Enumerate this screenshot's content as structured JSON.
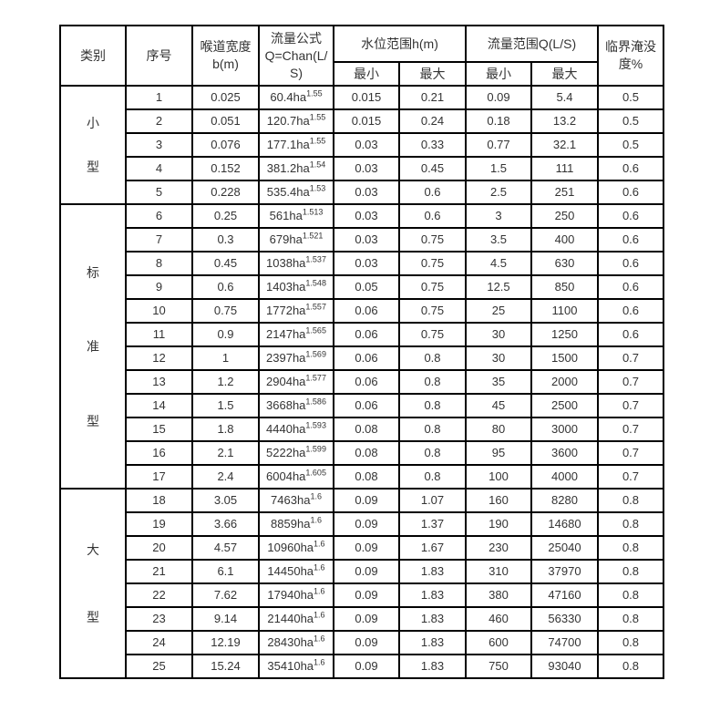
{
  "colors": {
    "background": "#ffffff",
    "border": "#000000",
    "text": "#333333"
  },
  "table": {
    "header": {
      "category": "类别",
      "seq": "序号",
      "throat_width": "喉道宽度\nb(m)",
      "formula": "流量公式\nQ=Chan(L/\nS)",
      "water_level_range": "水位范围h(m)",
      "flow_range": "流量范围Q(L/S)",
      "critical_submergence": "临界淹没\n度%",
      "sub": [
        "最小",
        "最大",
        "最小",
        "最大"
      ]
    },
    "categories": [
      {
        "label": "小型",
        "chars": [
          "小",
          "型"
        ],
        "rows": [
          {
            "seq": "1",
            "b": "0.025",
            "formula_base": "60.4ha",
            "formula_exp": "1.55",
            "h_min": "0.015",
            "h_max": "0.21",
            "q_min": "0.09",
            "q_max": "5.4",
            "submergence": "0.5"
          },
          {
            "seq": "2",
            "b": "0.051",
            "formula_base": "120.7ha",
            "formula_exp": "1.55",
            "h_min": "0.015",
            "h_max": "0.24",
            "q_min": "0.18",
            "q_max": "13.2",
            "submergence": "0.5"
          },
          {
            "seq": "3",
            "b": "0.076",
            "formula_base": "177.1ha",
            "formula_exp": "1.55",
            "h_min": "0.03",
            "h_max": "0.33",
            "q_min": "0.77",
            "q_max": "32.1",
            "submergence": "0.5"
          },
          {
            "seq": "4",
            "b": "0.152",
            "formula_base": "381.2ha",
            "formula_exp": "1.54",
            "h_min": "0.03",
            "h_max": "0.45",
            "q_min": "1.5",
            "q_max": "111",
            "submergence": "0.6"
          },
          {
            "seq": "5",
            "b": "0.228",
            "formula_base": "535.4ha",
            "formula_exp": "1.53",
            "h_min": "0.03",
            "h_max": "0.6",
            "q_min": "2.5",
            "q_max": "251",
            "submergence": "0.6"
          }
        ]
      },
      {
        "label": "标准型",
        "chars": [
          "标",
          "准",
          "型"
        ],
        "rows": [
          {
            "seq": "6",
            "b": "0.25",
            "formula_base": "561ha",
            "formula_exp": "1.513",
            "h_min": "0.03",
            "h_max": "0.6",
            "q_min": "3",
            "q_max": "250",
            "submergence": "0.6"
          },
          {
            "seq": "7",
            "b": "0.3",
            "formula_base": "679ha",
            "formula_exp": "1.521",
            "h_min": "0.03",
            "h_max": "0.75",
            "q_min": "3.5",
            "q_max": "400",
            "submergence": "0.6"
          },
          {
            "seq": "8",
            "b": "0.45",
            "formula_base": "1038ha",
            "formula_exp": "1.537",
            "h_min": "0.03",
            "h_max": "0.75",
            "q_min": "4.5",
            "q_max": "630",
            "submergence": "0.6"
          },
          {
            "seq": "9",
            "b": "0.6",
            "formula_base": "1403ha",
            "formula_exp": "1.548",
            "h_min": "0.05",
            "h_max": "0.75",
            "q_min": "12.5",
            "q_max": "850",
            "submergence": "0.6"
          },
          {
            "seq": "10",
            "b": "0.75",
            "formula_base": "1772ha",
            "formula_exp": "1.557",
            "h_min": "0.06",
            "h_max": "0.75",
            "q_min": "25",
            "q_max": "1100",
            "submergence": "0.6"
          },
          {
            "seq": "11",
            "b": "0.9",
            "formula_base": "2147ha",
            "formula_exp": "1.565",
            "h_min": "0.06",
            "h_max": "0.75",
            "q_min": "30",
            "q_max": "1250",
            "submergence": "0.6"
          },
          {
            "seq": "12",
            "b": "1",
            "formula_base": "2397ha",
            "formula_exp": "1.569",
            "h_min": "0.06",
            "h_max": "0.8",
            "q_min": "30",
            "q_max": "1500",
            "submergence": "0.7"
          },
          {
            "seq": "13",
            "b": "1.2",
            "formula_base": "2904ha",
            "formula_exp": "1.577",
            "h_min": "0.06",
            "h_max": "0.8",
            "q_min": "35",
            "q_max": "2000",
            "submergence": "0.7"
          },
          {
            "seq": "14",
            "b": "1.5",
            "formula_base": "3668ha",
            "formula_exp": "1.586",
            "h_min": "0.06",
            "h_max": "0.8",
            "q_min": "45",
            "q_max": "2500",
            "submergence": "0.7"
          },
          {
            "seq": "15",
            "b": "1.8",
            "formula_base": "4440ha",
            "formula_exp": "1.593",
            "h_min": "0.08",
            "h_max": "0.8",
            "q_min": "80",
            "q_max": "3000",
            "submergence": "0.7"
          },
          {
            "seq": "16",
            "b": "2.1",
            "formula_base": "5222ha",
            "formula_exp": "1.599",
            "h_min": "0.08",
            "h_max": "0.8",
            "q_min": "95",
            "q_max": "3600",
            "submergence": "0.7"
          },
          {
            "seq": "17",
            "b": "2.4",
            "formula_base": "6004ha",
            "formula_exp": "1.605",
            "h_min": "0.08",
            "h_max": "0.8",
            "q_min": "100",
            "q_max": "4000",
            "submergence": "0.7"
          }
        ]
      },
      {
        "label": "大型",
        "chars": [
          "大",
          "型"
        ],
        "rows": [
          {
            "seq": "18",
            "b": "3.05",
            "formula_base": "7463ha",
            "formula_exp": "1.6",
            "h_min": "0.09",
            "h_max": "1.07",
            "q_min": "160",
            "q_max": "8280",
            "submergence": "0.8"
          },
          {
            "seq": "19",
            "b": "3.66",
            "formula_base": "8859ha",
            "formula_exp": "1.6",
            "h_min": "0.09",
            "h_max": "1.37",
            "q_min": "190",
            "q_max": "14680",
            "submergence": "0.8"
          },
          {
            "seq": "20",
            "b": "4.57",
            "formula_base": "10960ha",
            "formula_exp": "1.6",
            "h_min": "0.09",
            "h_max": "1.67",
            "q_min": "230",
            "q_max": "25040",
            "submergence": "0.8"
          },
          {
            "seq": "21",
            "b": "6.1",
            "formula_base": "14450ha",
            "formula_exp": "1.6",
            "h_min": "0.09",
            "h_max": "1.83",
            "q_min": "310",
            "q_max": "37970",
            "submergence": "0.8"
          },
          {
            "seq": "22",
            "b": "7.62",
            "formula_base": "17940ha",
            "formula_exp": "1.6",
            "h_min": "0.09",
            "h_max": "1.83",
            "q_min": "380",
            "q_max": "47160",
            "submergence": "0.8"
          },
          {
            "seq": "23",
            "b": "9.14",
            "formula_base": "21440ha",
            "formula_exp": "1.6",
            "h_min": "0.09",
            "h_max": "1.83",
            "q_min": "460",
            "q_max": "56330",
            "submergence": "0.8"
          },
          {
            "seq": "24",
            "b": "12.19",
            "formula_base": "28430ha",
            "formula_exp": "1.6",
            "h_min": "0.09",
            "h_max": "1.83",
            "q_min": "600",
            "q_max": "74700",
            "submergence": "0.8"
          },
          {
            "seq": "25",
            "b": "15.24",
            "formula_base": "35410ha",
            "formula_exp": "1.6",
            "h_min": "0.09",
            "h_max": "1.83",
            "q_min": "750",
            "q_max": "93040",
            "submergence": "0.8"
          }
        ]
      }
    ]
  }
}
